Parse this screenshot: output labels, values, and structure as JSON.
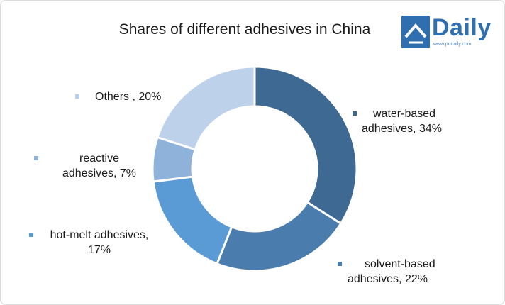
{
  "title": "Shares of different adhesives in China",
  "logo": {
    "word": "Daily",
    "url": "www.pudaily.com",
    "icon": "pudaily-logo-icon"
  },
  "colors": {
    "water": "#3d6993",
    "solvent": "#4a7dad",
    "hotmelt": "#5b9bd5",
    "reactive": "#8fb2db",
    "others": "#bdd1eb",
    "brand": "#2f6fb0"
  },
  "chart_data": {
    "type": "pie",
    "title": "Shares of different adhesives in China",
    "donut": true,
    "unit": "%",
    "slices": [
      {
        "label": "water-based adhesives",
        "value": 34,
        "display": "water-based adhesives, 34%"
      },
      {
        "label": "solvent-based adhesives",
        "value": 22,
        "display": "solvent-based adhesives, 22%"
      },
      {
        "label": "hot-melt adhesives",
        "value": 17,
        "display": "hot-melt adhesives, 17%"
      },
      {
        "label": "reactive adhesives",
        "value": 7,
        "display": "reactive adhesives, 7%"
      },
      {
        "label": "Others",
        "value": 20,
        "display": "Others , 20%"
      }
    ],
    "labels": {
      "water": {
        "line1": "water-based",
        "line2": "adhesives, 34%"
      },
      "solvent": {
        "line1": "solvent-based",
        "line2": "adhesives, 22%"
      },
      "hotmelt": {
        "line1": "hot-melt adhesives,",
        "line2": "17%"
      },
      "reactive": {
        "line1": "reactive",
        "line2": "adhesives, 7%"
      },
      "others": {
        "line1": "Others , 20%"
      }
    }
  }
}
